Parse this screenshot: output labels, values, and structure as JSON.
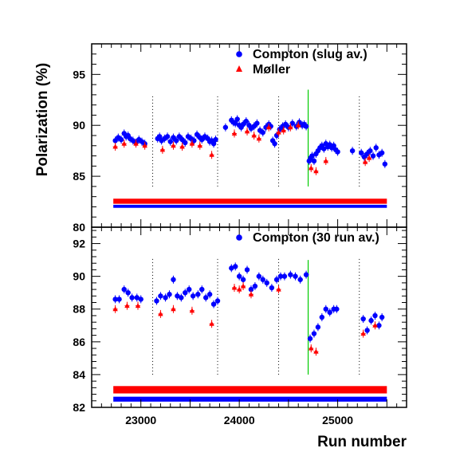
{
  "chart_data": [
    {
      "type": "scatter",
      "panel": "top",
      "ylabel": "Polarization (%)",
      "xlabel": "",
      "xlim": [
        22500,
        25700
      ],
      "ylim": [
        80,
        98
      ],
      "yticks": [
        80,
        85,
        90,
        95
      ],
      "xticks": [
        23000,
        24000,
        25000
      ],
      "grid": false,
      "legend_position": "top-right",
      "legend": [
        {
          "label": "Compton (slug av.)",
          "marker": "circle",
          "color": "#0000ff"
        },
        {
          "label": "Møller",
          "marker": "triangle",
          "color": "#ff0000"
        }
      ],
      "vertical_lines": [
        {
          "x": 23120,
          "style": "dotted",
          "color": "#000000",
          "range": [
            84,
            93
          ]
        },
        {
          "x": 23780,
          "style": "dotted",
          "color": "#000000",
          "range": [
            84,
            93
          ]
        },
        {
          "x": 24400,
          "style": "dotted",
          "color": "#000000",
          "range": [
            84,
            93
          ]
        },
        {
          "x": 24700,
          "style": "solid",
          "color": "#00cc00",
          "range": [
            84,
            93.5
          ]
        },
        {
          "x": 25220,
          "style": "dotted",
          "color": "#000000",
          "range": [
            84,
            93
          ]
        }
      ],
      "bands": [
        {
          "x": [
            22720,
            25500
          ],
          "y": [
            82.3,
            82.8
          ],
          "color": "#ff0000"
        },
        {
          "x": [
            22720,
            25500
          ],
          "y": [
            81.9,
            82.2
          ],
          "color": "#0000ff"
        }
      ],
      "series": [
        {
          "name": "Compton (slug av.)",
          "color": "#0000ff",
          "marker": "circle",
          "x": [
            22740,
            22770,
            22800,
            22830,
            22850,
            22870,
            22890,
            22920,
            22950,
            22980,
            23010,
            23040,
            23170,
            23190,
            23210,
            23240,
            23270,
            23300,
            23330,
            23360,
            23390,
            23420,
            23450,
            23480,
            23510,
            23540,
            23570,
            23600,
            23620,
            23650,
            23680,
            23700,
            23720,
            23740,
            23760,
            23860,
            23920,
            23940,
            23960,
            23980,
            24000,
            24020,
            24040,
            24070,
            24100,
            24120,
            24150,
            24180,
            24210,
            24240,
            24270,
            24300,
            24320,
            24340,
            24360,
            24380,
            24410,
            24440,
            24470,
            24500,
            24540,
            24580,
            24610,
            24640,
            24660,
            24680,
            24710,
            24725,
            24740,
            24760,
            24780,
            24800,
            24820,
            24840,
            24860,
            24880,
            24900,
            24920,
            24940,
            24960,
            24980,
            25000,
            25150,
            25240,
            25270,
            25300,
            25330,
            25360,
            25390,
            25420,
            25450,
            25480
          ],
          "y": [
            88.5,
            88.8,
            88.6,
            89.2,
            88.9,
            89.0,
            88.7,
            88.5,
            88.3,
            88.6,
            88.4,
            88.2,
            88.7,
            88.9,
            88.5,
            88.7,
            88.9,
            88.4,
            88.8,
            88.5,
            88.9,
            88.6,
            88.3,
            88.9,
            88.7,
            88.5,
            89.1,
            88.8,
            88.6,
            88.9,
            88.7,
            88.4,
            88.5,
            88.2,
            88.6,
            89.8,
            90.5,
            90.3,
            90.2,
            90.6,
            90.0,
            89.8,
            90.1,
            90.4,
            90.0,
            89.7,
            89.9,
            90.2,
            89.5,
            89.3,
            89.8,
            90.1,
            89.9,
            88.5,
            88.2,
            89.0,
            89.6,
            89.9,
            90.1,
            89.8,
            90.2,
            89.9,
            90.3,
            90.0,
            90.1,
            89.9,
            86.5,
            86.8,
            87.0,
            86.5,
            87.2,
            87.5,
            87.8,
            88.0,
            87.7,
            88.2,
            87.9,
            88.1,
            87.8,
            88.0,
            87.6,
            87.4,
            87.5,
            87.3,
            86.9,
            87.2,
            87.5,
            87.0,
            87.8,
            87.1,
            87.3,
            86.2
          ]
        },
        {
          "name": "Møller",
          "color": "#ff0000",
          "marker": "triangle",
          "x": [
            22740,
            22830,
            22950,
            23040,
            23220,
            23330,
            23420,
            23520,
            23600,
            23720,
            23950,
            24080,
            24150,
            24200,
            24300,
            24400,
            24450,
            24520,
            24600,
            24730,
            24780,
            24880,
            25280,
            25320
          ],
          "y": [
            87.9,
            88.2,
            88.2,
            88.0,
            87.6,
            88.0,
            87.9,
            88.2,
            88.0,
            87.1,
            89.2,
            89.4,
            89.0,
            88.7,
            89.8,
            89.3,
            89.5,
            89.8,
            90.0,
            85.8,
            85.5,
            86.5,
            86.4,
            86.8
          ]
        }
      ]
    },
    {
      "type": "scatter",
      "panel": "bottom",
      "xlabel": "Run number",
      "ylabel": "",
      "xlim": [
        22500,
        25700
      ],
      "ylim": [
        82,
        93
      ],
      "yticks": [
        82,
        84,
        86,
        88,
        90,
        92
      ],
      "xticks": [
        23000,
        24000,
        25000
      ],
      "grid": false,
      "legend_position": "top-right",
      "legend": [
        {
          "label": "Compton (30 run av.)",
          "marker": "circle",
          "color": "#0000ff"
        }
      ],
      "vertical_lines": [
        {
          "x": 23120,
          "style": "dotted",
          "color": "#000000",
          "range": [
            84,
            91.2
          ]
        },
        {
          "x": 23780,
          "style": "dotted",
          "color": "#000000",
          "range": [
            84,
            91.2
          ]
        },
        {
          "x": 24400,
          "style": "dotted",
          "color": "#000000",
          "range": [
            84,
            91.2
          ]
        },
        {
          "x": 24700,
          "style": "solid",
          "color": "#00cc00",
          "range": [
            84,
            91.0
          ]
        },
        {
          "x": 25220,
          "style": "dotted",
          "color": "#000000",
          "range": [
            84,
            91.2
          ]
        }
      ],
      "bands": [
        {
          "x": [
            22720,
            25500
          ],
          "y": [
            82.85,
            83.3
          ],
          "color": "#ff0000"
        },
        {
          "x": [
            22720,
            25500
          ],
          "y": [
            82.35,
            82.65
          ],
          "color": "#0000ff"
        }
      ],
      "series": [
        {
          "name": "Compton (30 run av.)",
          "color": "#0000ff",
          "marker": "circle",
          "x": [
            22740,
            22780,
            22830,
            22870,
            22910,
            22960,
            23000,
            23160,
            23200,
            23250,
            23290,
            23330,
            23370,
            23410,
            23450,
            23490,
            23530,
            23580,
            23620,
            23660,
            23700,
            23740,
            23780,
            23920,
            23960,
            24000,
            24040,
            24080,
            24120,
            24160,
            24200,
            24240,
            24280,
            24330,
            24380,
            24420,
            24460,
            24520,
            24570,
            24620,
            24680,
            24720,
            24760,
            24800,
            24840,
            24880,
            24920,
            24960,
            24990,
            25260,
            25300,
            25340,
            25380,
            25420,
            25450
          ],
          "y": [
            88.6,
            88.6,
            89.2,
            89.0,
            88.7,
            88.7,
            88.6,
            88.5,
            88.8,
            88.7,
            88.9,
            89.8,
            88.8,
            88.7,
            89.0,
            89.2,
            88.8,
            88.9,
            89.2,
            88.7,
            88.9,
            88.3,
            88.5,
            90.5,
            90.6,
            90.0,
            89.8,
            90.4,
            89.2,
            89.4,
            90.0,
            89.8,
            89.6,
            89.3,
            89.8,
            90.0,
            90.0,
            90.1,
            90.0,
            89.8,
            90.1,
            86.2,
            86.5,
            86.9,
            87.5,
            88.0,
            87.8,
            88.0,
            88.0,
            87.4,
            86.7,
            87.3,
            87.6,
            87.0,
            87.5
          ]
        },
        {
          "name": "Møller",
          "color": "#ff0000",
          "marker": "triangle",
          "x": [
            22740,
            22860,
            22970,
            23200,
            23330,
            23520,
            23720,
            23950,
            24000,
            24040,
            24120,
            24400,
            24730,
            24780,
            25260,
            25380
          ],
          "y": [
            88.0,
            88.2,
            88.2,
            87.7,
            88.0,
            87.9,
            87.1,
            89.3,
            89.2,
            89.4,
            88.9,
            89.2,
            85.6,
            85.4,
            86.5,
            87.0
          ]
        }
      ]
    }
  ]
}
